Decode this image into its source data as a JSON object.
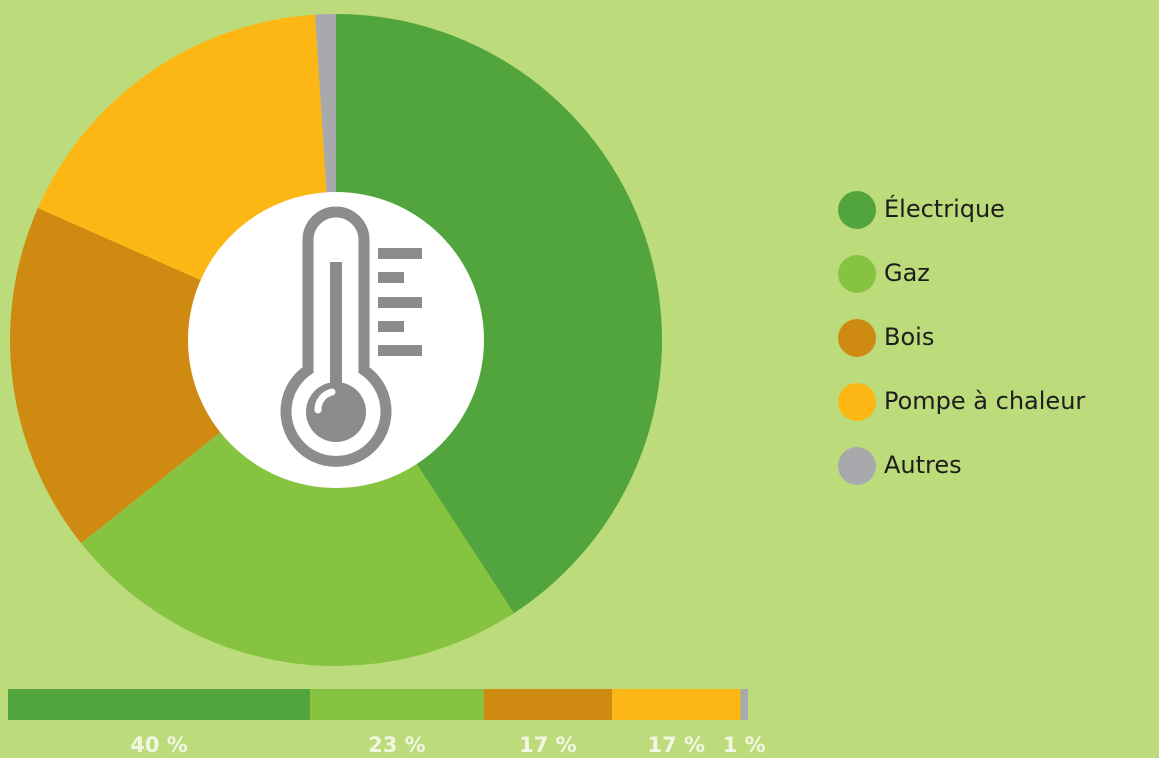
{
  "chart_data": {
    "type": "donut",
    "categories": [
      "Électrique",
      "Gaz",
      "Bois",
      "Pompe à chaleur",
      "Autres"
    ],
    "values": [
      40,
      23,
      17,
      17,
      1
    ],
    "value_labels": [
      "40 %",
      "23 %",
      "17 %",
      "17 %",
      "1 %"
    ],
    "colors": [
      "#52a43c",
      "#86c341",
      "#cf8a12",
      "#fdb714",
      "#a7a9ac"
    ]
  }
}
